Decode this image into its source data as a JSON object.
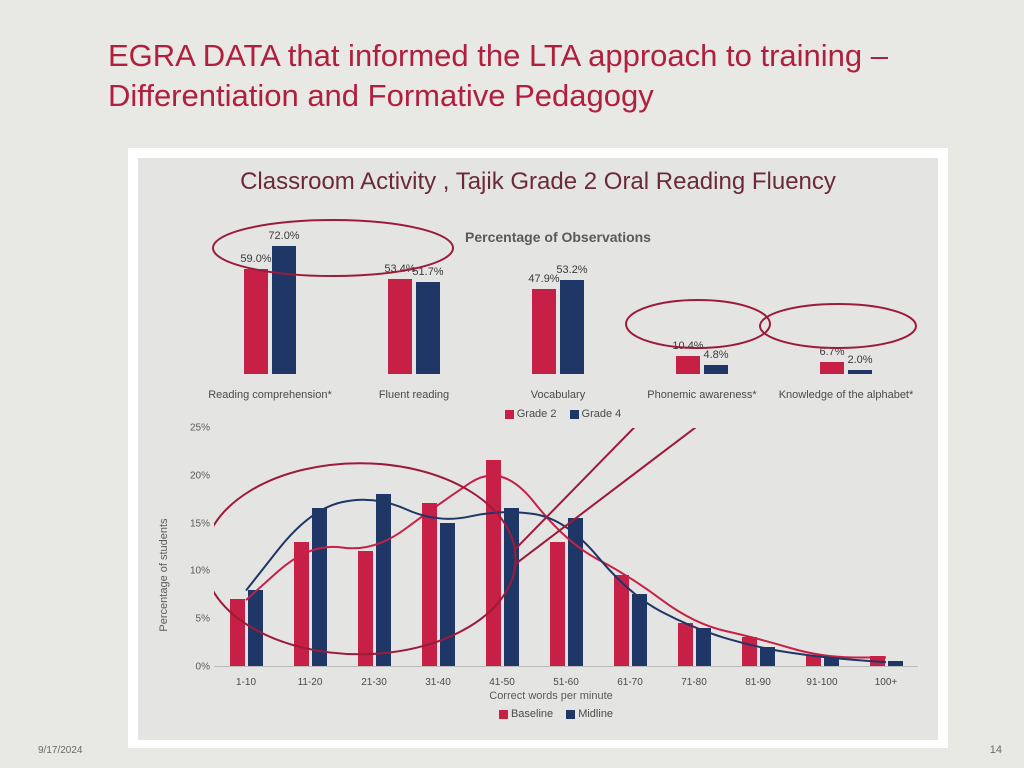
{
  "slide": {
    "title": "EGRA DATA that informed the LTA approach to training – Differentiation and Formative Pedagogy",
    "date": "9/17/2024",
    "page": "14"
  },
  "colors": {
    "series_a": "#c62046",
    "series_b": "#1f3766",
    "title": "#6b2a3a",
    "ellipse": "#9c1b3b",
    "bg_card": "#ffffff",
    "bg_inner": "#e4e4e2"
  },
  "chart_title": "Classroom Activity , Tajik Grade 2 Oral Reading Fluency",
  "top_chart": {
    "subtitle": "Percentage of Observations",
    "ymax": 80,
    "categories": [
      "Reading comprehension*",
      "Fluent reading",
      "Vocabulary",
      "Phonemic awareness*",
      "Knowledge of the alphabet*"
    ],
    "series": [
      {
        "name": "Grade 2",
        "color": "#c62046",
        "values": [
          59.0,
          53.4,
          47.9,
          10.4,
          6.7
        ]
      },
      {
        "name": "Grade 4",
        "color": "#1f3766",
        "values": [
          72.0,
          51.7,
          53.2,
          4.8,
          2.0
        ]
      }
    ],
    "value_labels": [
      [
        "59.0%",
        "72.0%"
      ],
      [
        "53.4%",
        "51.7%"
      ],
      [
        "47.9%",
        "53.2%"
      ],
      [
        "10.4%",
        "4.8%"
      ],
      [
        "6.7%",
        "2.0%"
      ]
    ]
  },
  "bottom_chart": {
    "ylabel": "Percentage of students",
    "xlabel": "Correct words per minute",
    "ymax": 25,
    "ytick_step": 5,
    "yticks": [
      "0%",
      "5%",
      "10%",
      "15%",
      "20%",
      "25%"
    ],
    "categories": [
      "1-10",
      "11-20",
      "21-30",
      "31-40",
      "41-50",
      "51-60",
      "61-70",
      "71-80",
      "81-90",
      "91-100",
      "100+"
    ],
    "series": [
      {
        "name": "Baseline",
        "color": "#c62046",
        "values": [
          7.0,
          13.0,
          12.0,
          17.0,
          21.5,
          13.0,
          9.5,
          4.5,
          3.0,
          1.0,
          1.0
        ]
      },
      {
        "name": "Midline",
        "color": "#1f3766",
        "values": [
          8.0,
          16.5,
          18.0,
          15.0,
          16.5,
          15.5,
          7.5,
          4.0,
          2.0,
          1.0,
          0.5
        ]
      }
    ]
  }
}
